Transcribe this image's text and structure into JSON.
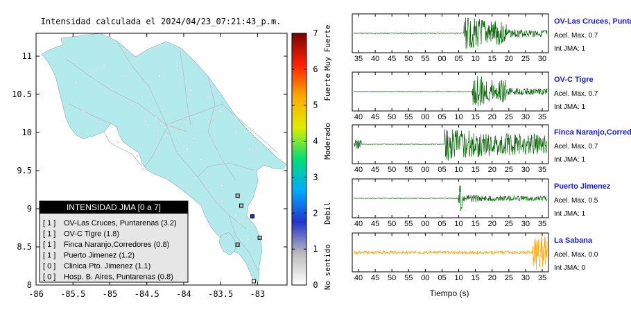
{
  "map": {
    "title": "Intensidad calculada el 2024/04/23_07:21:43_p.m.",
    "x_ticks": [
      "-86",
      "-85.5",
      "-85",
      "-84.5",
      "-84",
      "-83.5",
      "-83"
    ],
    "y_ticks": [
      "11",
      "10.5",
      "10",
      "9.5",
      "9",
      "8.5",
      "8"
    ],
    "land_color": "#b3eaeb",
    "station_points": [
      {
        "lon": -83.27,
        "lat": 9.17,
        "intensity": 1
      },
      {
        "lon": -83.22,
        "lat": 9.04,
        "intensity": 1
      },
      {
        "lon": -83.07,
        "lat": 8.9,
        "intensity": 2
      },
      {
        "lon": -83.27,
        "lat": 8.53,
        "intensity": 1
      },
      {
        "lon": -82.97,
        "lat": 8.62,
        "intensity": 1
      },
      {
        "lon": -83.05,
        "lat": 8.05,
        "intensity": 0
      }
    ]
  },
  "legend": {
    "title": "INTENSIDAD JMA [0 a 7]",
    "items": [
      {
        "code": "[ 1 ]",
        "label": "OV-Las Cruces, Puntarenas (3.2)"
      },
      {
        "code": "[ 1 ]",
        "label": "OV-C Tigre (1.8)"
      },
      {
        "code": "[ 1 ]",
        "label": "Finca Naranjo,Corredores (0.8)"
      },
      {
        "code": "[ 1 ]",
        "label": "Puerto Jimenez (1.2)"
      },
      {
        "code": "[ 0 ]",
        "label": "Clinica Pto. Jimenez (1.1)"
      },
      {
        "code": "[ 0 ]",
        "label": "Hosp. B. Aires, Puntarenas (0.8)"
      }
    ]
  },
  "colorbar": {
    "ticks": [
      "0",
      "1",
      "2",
      "3",
      "4",
      "5",
      "6",
      "7"
    ],
    "labels": [
      "No sentido",
      "Debil",
      "Moderado",
      "Fuerte",
      "Muy Fuerte"
    ],
    "stops": [
      "#ffffff",
      "#bbbbbb",
      "#2233cc",
      "#00aaff",
      "#00dd77",
      "#ddee00",
      "#ffaa00",
      "#ff2200",
      "#7a0000"
    ]
  },
  "traces": [
    {
      "name": "OV-Las Cruces, Puntarenas",
      "acel": "Acel. Max. 0.7",
      "jma": "Int JMA: 1",
      "color": "#006400",
      "onset": 0.57,
      "amp": 1.0,
      "ticks": [
        "35",
        "40",
        "45",
        "50",
        "55",
        "00",
        "05",
        "10",
        "15",
        "20",
        "25",
        "30"
      ]
    },
    {
      "name": "OV-C Tigre",
      "acel": "Acel. Max. 0.7",
      "jma": "Int JMA: 1",
      "color": "#006400",
      "onset": 0.61,
      "amp": 1.0,
      "ticks": [
        "40",
        "45",
        "50",
        "55",
        "00",
        "05",
        "10",
        "15",
        "20",
        "25",
        "30",
        "35"
      ]
    },
    {
      "name": "Finca Naranjo,Corredores",
      "acel": "Acel. Max. 0.7",
      "jma": "Int JMA: 1",
      "color": "#006400",
      "onset": 0.47,
      "amp": 1.0,
      "ticks": [
        "40",
        "45",
        "50",
        "55",
        "00",
        "05",
        "10",
        "15",
        "20",
        "25",
        "30",
        "35"
      ]
    },
    {
      "name": "Puerto Jimenez",
      "acel": "Acel. Max. 0.5",
      "jma": "Int JMA: 1",
      "color": "#006400",
      "onset": 0.54,
      "amp": 0.8,
      "ticks": [
        "40",
        "45",
        "50",
        "55",
        "00",
        "05",
        "10",
        "15",
        "20",
        "25",
        "30",
        "35"
      ]
    },
    {
      "name": "La Sabana",
      "acel": "Acel. Max. 0.0",
      "jma": "Int JMA: 0",
      "color": "#ffa500",
      "onset": 0.92,
      "amp": 1.0,
      "ticks": [
        "40",
        "45",
        "50",
        "55",
        "00",
        "05",
        "10",
        "15",
        "20",
        "25",
        "30",
        "35"
      ]
    }
  ],
  "xlabel": "Tiempo (s)"
}
